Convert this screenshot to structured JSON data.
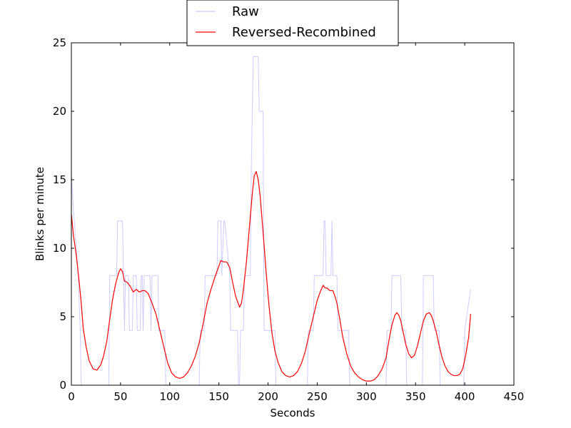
{
  "chart_data": {
    "type": "line",
    "title": "",
    "xlabel": "Seconds",
    "ylabel": "Blinks per minute",
    "xlim": [
      0,
      450
    ],
    "ylim": [
      0,
      25
    ],
    "xticks": [
      0,
      50,
      100,
      150,
      200,
      250,
      300,
      350,
      400,
      450
    ],
    "yticks": [
      0,
      5,
      10,
      15,
      20,
      25
    ],
    "grid": false,
    "legend_position": "top-center, above plot",
    "series": [
      {
        "name": "Raw",
        "color": "#ccccff",
        "x": [
          0,
          1,
          3,
          5,
          7,
          8,
          9,
          10,
          38,
          39,
          46,
          47,
          52,
          53,
          54,
          55,
          58,
          59,
          62,
          63,
          66,
          67,
          70,
          71,
          72,
          73,
          74,
          75,
          80,
          81,
          82,
          83,
          88,
          89,
          90,
          95,
          96,
          130,
          131,
          135,
          136,
          148,
          149,
          152,
          153,
          155,
          156,
          161,
          162,
          169,
          170,
          171,
          172,
          175,
          176,
          182,
          183,
          184,
          185,
          186,
          190,
          191,
          195,
          196,
          207,
          208,
          240,
          241,
          246,
          247,
          256,
          257,
          258,
          259,
          260,
          264,
          265,
          266,
          267,
          270,
          271,
          272,
          282,
          283,
          320,
          321,
          325,
          326,
          335,
          336,
          340,
          341,
          357,
          358,
          368,
          369,
          374,
          375,
          399,
          400,
          406
        ],
        "y": [
          15.5,
          14,
          12,
          10,
          8,
          6,
          4,
          0,
          0,
          8,
          8,
          12,
          12,
          8,
          4,
          8,
          8,
          4,
          4,
          8,
          8,
          4,
          4,
          8,
          8,
          4,
          8,
          8,
          8,
          4,
          8,
          8,
          8,
          4,
          4,
          4,
          0,
          0,
          4,
          4,
          8,
          8,
          12,
          12,
          8,
          12,
          12,
          8,
          4,
          4,
          0,
          0,
          4,
          4,
          8,
          8,
          16,
          20,
          24,
          24,
          24,
          20,
          20,
          4,
          4,
          0,
          0,
          4,
          4,
          8,
          8,
          12,
          12,
          8,
          8,
          8,
          12,
          8,
          8,
          8,
          4,
          4,
          4,
          0,
          0,
          4,
          4,
          8,
          8,
          4,
          4,
          0,
          0,
          8,
          8,
          4,
          4,
          0,
          0,
          4,
          7
        ]
      },
      {
        "name": "Reversed-Recombined",
        "color": "#ff0000",
        "x": [
          0,
          2,
          5,
          8,
          10,
          12,
          15,
          18,
          22,
          26,
          30,
          33,
          36,
          39,
          42,
          45,
          48,
          50,
          52,
          54,
          57,
          60,
          63,
          66,
          69,
          72,
          75,
          78,
          82,
          86,
          90,
          94,
          98,
          102,
          106,
          110,
          114,
          118,
          122,
          126,
          130,
          134,
          138,
          142,
          146,
          150,
          152,
          155,
          158,
          161,
          164,
          167,
          169,
          171,
          173,
          175,
          178,
          181,
          184,
          186,
          188,
          190,
          192,
          194,
          196,
          198,
          201,
          204,
          207,
          210,
          214,
          218,
          222,
          226,
          230,
          234,
          238,
          242,
          246,
          250,
          253,
          256,
          258,
          260,
          263,
          266,
          268,
          270,
          273,
          276,
          280,
          284,
          288,
          292,
          296,
          300,
          304,
          308,
          312,
          316,
          320,
          323,
          326,
          329,
          331,
          333,
          335,
          337,
          340,
          343,
          346,
          349,
          352,
          355,
          358,
          361,
          364,
          366,
          368,
          371,
          374,
          377,
          380,
          383,
          386,
          389,
          392,
          395,
          398,
          401,
          404,
          406
        ],
        "y": [
          12.5,
          11,
          9.5,
          7.5,
          6,
          4.2,
          2.8,
          1.8,
          1.2,
          1.1,
          1.5,
          2.2,
          3.2,
          4.8,
          6.3,
          7.4,
          8.2,
          8.5,
          8.3,
          7.6,
          7.5,
          7.2,
          6.8,
          7.0,
          6.8,
          6.9,
          6.9,
          6.7,
          6.0,
          5.2,
          4.0,
          2.8,
          1.6,
          0.9,
          0.6,
          0.5,
          0.6,
          0.9,
          1.4,
          2.1,
          3.1,
          4.5,
          6.0,
          7.0,
          7.9,
          8.7,
          9.1,
          9.0,
          9.0,
          8.6,
          7.5,
          6.5,
          6.1,
          5.7,
          6.0,
          7.0,
          9.0,
          11.5,
          14.0,
          15.3,
          15.6,
          15.0,
          13.8,
          12.0,
          10.2,
          8.3,
          5.8,
          3.8,
          2.5,
          1.7,
          1.0,
          0.7,
          0.6,
          0.7,
          1.0,
          1.6,
          2.5,
          3.8,
          5.0,
          6.2,
          6.8,
          7.3,
          7.1,
          7.1,
          6.9,
          6.9,
          6.5,
          6.0,
          4.8,
          3.5,
          2.3,
          1.4,
          0.9,
          0.6,
          0.4,
          0.3,
          0.3,
          0.4,
          0.7,
          1.2,
          2.0,
          3.3,
          4.4,
          5.1,
          5.3,
          5.1,
          4.7,
          4.0,
          3.0,
          2.3,
          2.0,
          2.2,
          2.9,
          3.8,
          4.7,
          5.2,
          5.3,
          5.1,
          4.7,
          3.9,
          2.9,
          2.0,
          1.4,
          1.0,
          0.8,
          0.7,
          0.7,
          0.8,
          1.2,
          2.2,
          3.5,
          5.2
        ]
      }
    ]
  }
}
